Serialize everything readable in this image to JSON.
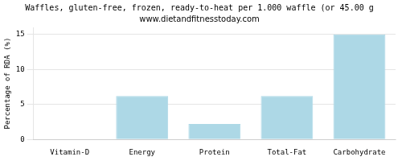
{
  "chart_data": {
    "type": "bar",
    "title": "Waffles, gluten-free, frozen, ready-to-heat per 1.000 waffle (or 45.00 g",
    "subtitle": "www.dietandfitnesstoday.com",
    "categories": [
      "Vitamin-D",
      "Energy",
      "Protein",
      "Total-Fat",
      "Carbohydrate"
    ],
    "values": [
      0.0,
      6.2,
      2.2,
      6.2,
      15.0
    ],
    "color": "#add8e6",
    "ylabel": "Percentage of RDA (%)",
    "ylim": [
      0,
      16
    ],
    "yticks": [
      0,
      5,
      10,
      15
    ],
    "grid": true
  }
}
